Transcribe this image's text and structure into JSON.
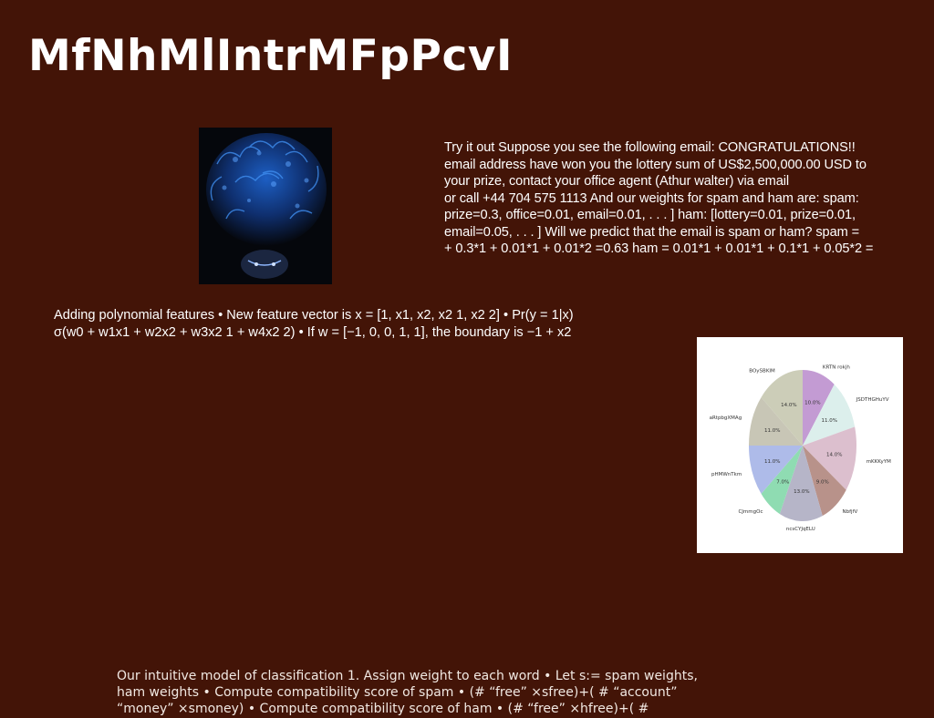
{
  "slide": {
    "title": "MfNhMlIntrMFpPcvI",
    "background": "#431407"
  },
  "email_example": {
    "lines": [
      "Try it out Suppose you see the following email: CONGRATULATIONS!!",
      "email address have won you the lottery sum of US$2,500,000.00 USD to",
      "your prize, contact your office agent (Athur walter) via email",
      "or call +44 704 575 1113 And our weights for spam and ham are: spam:",
      "prize=0.3, office=0.01, email=0.01, . . . ] ham: [lottery=0.01, prize=0.01,",
      "email=0.05, . . . ] Will we predict that the email is spam or ham? spam =",
      "+ 0.3*1 + 0.01*1 + 0.01*2 =0.63 ham = 0.01*1 + 0.01*1 + 0.1*1 + 0.05*2 ="
    ]
  },
  "polynomial": {
    "lines": [
      "Adding polynomial features • New feature vector is x = [1, x1, x2, x2 1, x2 2] • Pr(y = 1|x)",
      "σ(w0 + w1x1 + w2x2 + w3x2 1 + w4x2 2) • If w = [−1, 0, 0, 1, 1], the boundary is −1 + x2"
    ]
  },
  "model": {
    "lines": [
      "Our intuitive model of classification 1. Assign weight to each word • Let s:= spam weights,",
      "ham weights • Compute compatibility score of spam • (# “free” ×sfree)+( # “account”",
      "“money” ×smoney) • Compute compatibility score of ham • (# “free” ×hfree)+( #"
    ]
  },
  "photo": {
    "icon": "portrait-photo"
  },
  "chart_data": {
    "type": "pie",
    "start_angle_deg": 90,
    "direction": "clockwise",
    "slices": [
      {
        "label": "KRTN rokjh",
        "value": 10.0,
        "pct_label": "10.0%",
        "color": "#c39bd3"
      },
      {
        "label": "JSDTHGHuYV",
        "value": 11.0,
        "pct_label": "11.0%",
        "color": "#dcefec"
      },
      {
        "label": "mKKKyYM",
        "value": 14.0,
        "pct_label": "14.0%",
        "color": "#dcbfce"
      },
      {
        "label": "NbfjfV",
        "value": 9.0,
        "pct_label": "9.0%",
        "color": "#b8928a"
      },
      {
        "label": "ncsCYJqELU",
        "value": 13.0,
        "pct_label": "13.0%",
        "color": "#b6b5c8"
      },
      {
        "label": "CJmmgOc",
        "value": 7.0,
        "pct_label": "7.0%",
        "color": "#8fdcb2"
      },
      {
        "label": "pHMWnTkm",
        "value": 11.0,
        "pct_label": "11.0%",
        "color": "#aebbe9"
      },
      {
        "label": "aRtpbgXMAg",
        "value": 11.0,
        "pct_label": "11.0%",
        "color": "#c8c6b6"
      },
      {
        "label": "BOySBKIM",
        "value": 14.0,
        "pct_label": "14.0%",
        "color": "#cccdb8"
      }
    ]
  }
}
